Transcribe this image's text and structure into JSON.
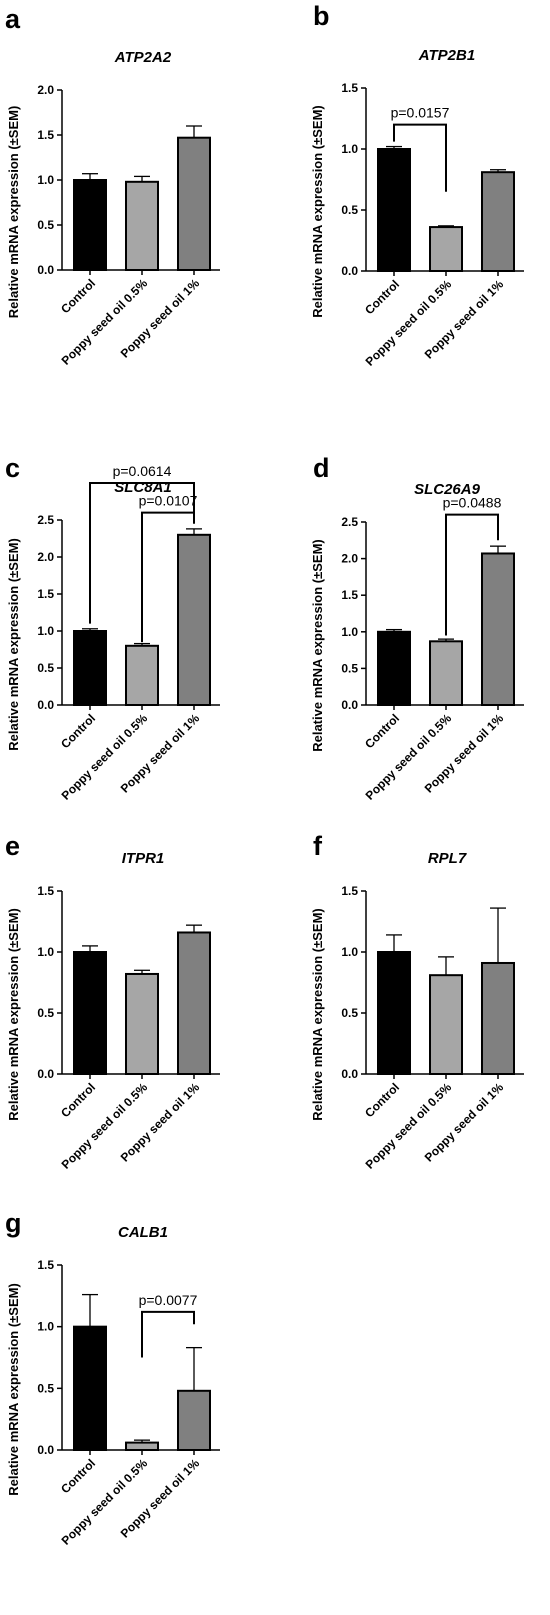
{
  "chart_data": [
    {
      "panel": "a",
      "type": "bar",
      "title": "ATP2A2",
      "ylabel": "Relative mRNA expression (±SEM)",
      "categories": [
        "Control",
        "Poppy seed oil 0.5%",
        "Poppy seed oil 1%"
      ],
      "values": [
        1.0,
        0.98,
        1.47
      ],
      "errors": [
        0.07,
        0.06,
        0.13
      ],
      "ylim": [
        0,
        2.0
      ],
      "yticks": [
        "0.0",
        "0.5",
        "1.0",
        "1.5",
        "2.0"
      ],
      "colors": [
        "#000000",
        "#a6a6a6",
        "#808080"
      ],
      "annotations": []
    },
    {
      "panel": "b",
      "type": "bar",
      "title": "ATP2B1",
      "ylabel": "Relative mRNA expression (±SEM)",
      "categories": [
        "Control",
        "Poppy seed oil 0.5%",
        "Poppy seed oil 1%"
      ],
      "values": [
        1.0,
        0.36,
        0.81
      ],
      "errors": [
        0.02,
        0.01,
        0.02
      ],
      "ylim": [
        0,
        1.5
      ],
      "yticks": [
        "0.0",
        "0.5",
        "1.0",
        "1.5"
      ],
      "colors": [
        "#000000",
        "#a6a6a6",
        "#808080"
      ],
      "annotations": [
        {
          "label": "p=0.0157",
          "from": 0,
          "to": 1,
          "y": 1.2,
          "left_end": 1.06,
          "right_end": 0.65
        }
      ]
    },
    {
      "panel": "c",
      "type": "bar",
      "title": "SLC8A1",
      "ylabel": "Relative mRNA expression (±SEM)",
      "categories": [
        "Control",
        "Poppy seed oil 0.5%",
        "Poppy seed oil 1%"
      ],
      "values": [
        1.0,
        0.8,
        2.3
      ],
      "errors": [
        0.03,
        0.03,
        0.08
      ],
      "ylim": [
        0,
        2.5
      ],
      "yticks": [
        "0.0",
        "0.5",
        "1.0",
        "1.5",
        "2.0",
        "2.5"
      ],
      "colors": [
        "#000000",
        "#a6a6a6",
        "#808080"
      ],
      "annotations": [
        {
          "label": "p=0.0614",
          "from": 0,
          "to": 2,
          "y": 3.0,
          "left_end": 1.1,
          "right_end": 2.5
        },
        {
          "label": "p=0.0107",
          "from": 1,
          "to": 2,
          "y": 2.6,
          "left_end": 0.85,
          "right_end": 2.45
        }
      ]
    },
    {
      "panel": "d",
      "type": "bar",
      "title": "SLC26A9",
      "ylabel": "Relative mRNA expression (±SEM)",
      "categories": [
        "Control",
        "Poppy seed oil 0.5%",
        "Poppy seed oil 1%"
      ],
      "values": [
        1.0,
        0.87,
        2.07
      ],
      "errors": [
        0.03,
        0.03,
        0.1
      ],
      "ylim": [
        0,
        2.5
      ],
      "yticks": [
        "0.0",
        "0.5",
        "1.0",
        "1.5",
        "2.0",
        "2.5"
      ],
      "colors": [
        "#000000",
        "#a6a6a6",
        "#808080"
      ],
      "annotations": [
        {
          "label": "p=0.0488",
          "from": 1,
          "to": 2,
          "y": 2.6,
          "left_end": 0.95,
          "right_end": 2.25
        }
      ]
    },
    {
      "panel": "e",
      "type": "bar",
      "title": "ITPR1",
      "ylabel": "Relative mRNA expression (±SEM)",
      "categories": [
        "Control",
        "Poppy seed oil 0.5%",
        "Poppy seed oil 1%"
      ],
      "values": [
        1.0,
        0.82,
        1.16
      ],
      "errors": [
        0.05,
        0.03,
        0.06
      ],
      "ylim": [
        0,
        1.5
      ],
      "yticks": [
        "0.0",
        "0.5",
        "1.0",
        "1.5"
      ],
      "colors": [
        "#000000",
        "#a6a6a6",
        "#808080"
      ],
      "annotations": []
    },
    {
      "panel": "f",
      "type": "bar",
      "title": "RPL7",
      "ylabel": "Relative mRNA expression (±SEM)",
      "categories": [
        "Control",
        "Poppy seed oil 0.5%",
        "Poppy seed oil 1%"
      ],
      "values": [
        1.0,
        0.81,
        0.91
      ],
      "errors": [
        0.14,
        0.15,
        0.45
      ],
      "ylim": [
        0,
        1.5
      ],
      "yticks": [
        "0.0",
        "0.5",
        "1.0",
        "1.5"
      ],
      "colors": [
        "#000000",
        "#a6a6a6",
        "#808080"
      ],
      "annotations": []
    },
    {
      "panel": "g",
      "type": "bar",
      "title": "CALB1",
      "ylabel": "Relative mRNA expression (±SEM)",
      "categories": [
        "Control",
        "Poppy seed oil 0.5%",
        "Poppy seed oil 1%"
      ],
      "values": [
        1.0,
        0.06,
        0.48
      ],
      "errors": [
        0.26,
        0.02,
        0.35
      ],
      "ylim": [
        0,
        1.5
      ],
      "yticks": [
        "0.0",
        "0.5",
        "1.0",
        "1.5"
      ],
      "colors": [
        "#000000",
        "#a6a6a6",
        "#808080"
      ],
      "annotations": [
        {
          "label": "p=0.0077",
          "from": 1,
          "to": 2,
          "y": 1.12,
          "left_end": 0.75,
          "right_end": 1.02
        }
      ]
    }
  ]
}
